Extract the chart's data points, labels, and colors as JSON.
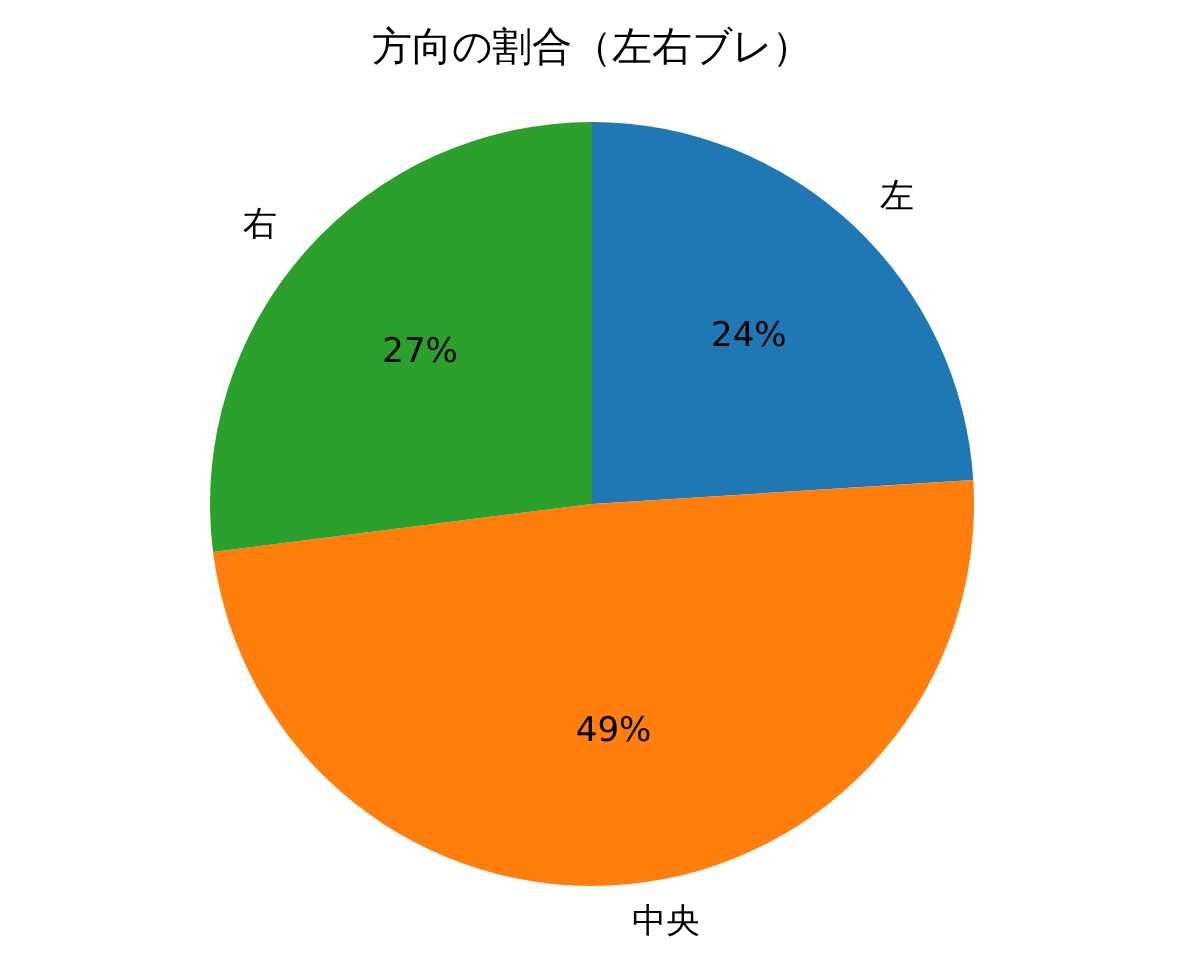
{
  "chart_data": {
    "type": "pie",
    "title": "方向の割合（左右ブレ）",
    "categories": [
      "左",
      "中央",
      "右"
    ],
    "values": [
      24,
      49,
      27
    ],
    "colors": [
      "#1f77b4",
      "#ff7f0e",
      "#2ca02c"
    ],
    "value_labels": [
      "24%",
      "49%",
      "27%"
    ]
  }
}
